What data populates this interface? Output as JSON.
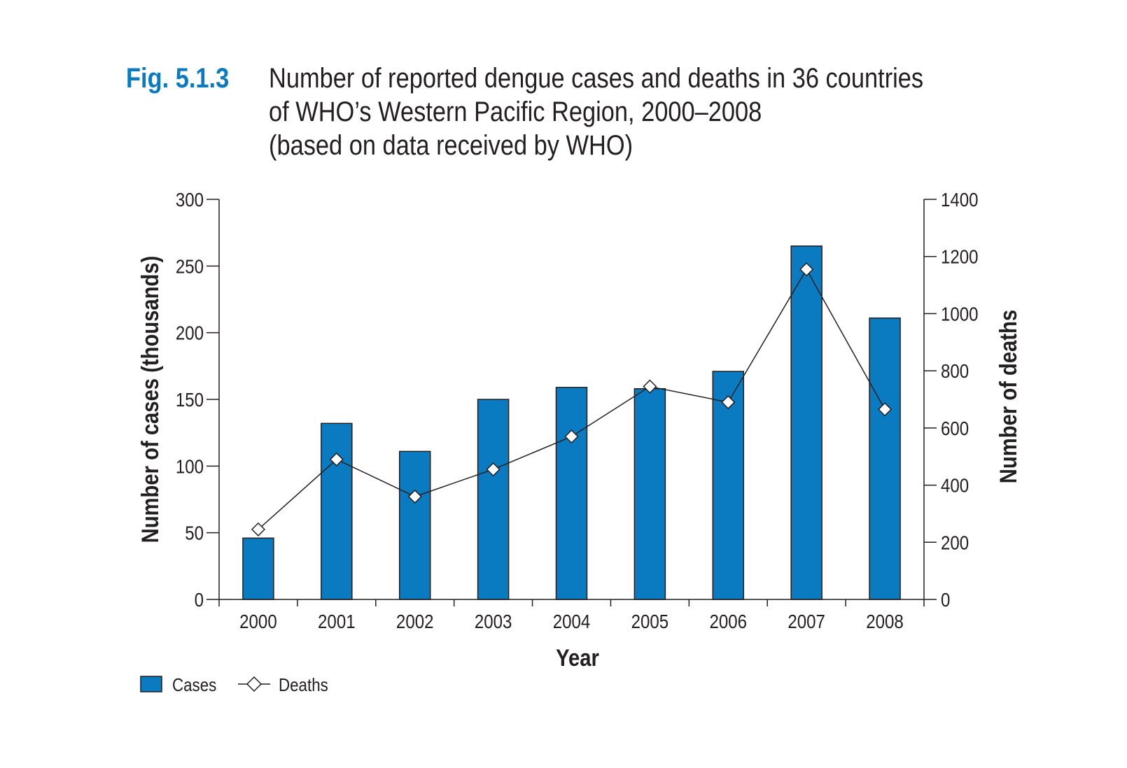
{
  "title": {
    "fig_label": "Fig. 5.1.3",
    "lines": [
      "Number of reported dengue cases and deaths in 36 countries",
      "of WHO’s Western Pacific Region, 2000–2008",
      "(based on data received by WHO)"
    ]
  },
  "colors": {
    "bar": "#0a7bc0",
    "fig_label": "#0a7bc0",
    "axis": "#231f20"
  },
  "chart_data": {
    "type": "bar",
    "categories": [
      "2000",
      "2001",
      "2002",
      "2003",
      "2004",
      "2005",
      "2006",
      "2007",
      "2008"
    ],
    "series": [
      {
        "name": "Cases",
        "type": "bar",
        "axis": "left",
        "values": [
          46,
          132,
          111,
          150,
          159,
          158,
          171,
          265,
          211
        ]
      },
      {
        "name": "Deaths",
        "type": "line",
        "axis": "right",
        "marker": "diamond",
        "values": [
          245,
          490,
          360,
          455,
          570,
          745,
          690,
          1155,
          665
        ]
      }
    ],
    "xlabel": "Year",
    "ylabel": "Number of cases (thousands)",
    "y2label": "Number of deaths",
    "ylim": [
      0,
      300
    ],
    "y2lim": [
      0,
      1400
    ],
    "yticks": [
      "0",
      "50",
      "100",
      "150",
      "200",
      "250",
      "300"
    ],
    "y2ticks": [
      "0",
      "200",
      "400",
      "600",
      "800",
      "1000",
      "1200",
      "1400"
    ],
    "grid": false,
    "legend": {
      "placement": "bottom-left",
      "entries": [
        "Cases",
        "Deaths"
      ]
    }
  }
}
